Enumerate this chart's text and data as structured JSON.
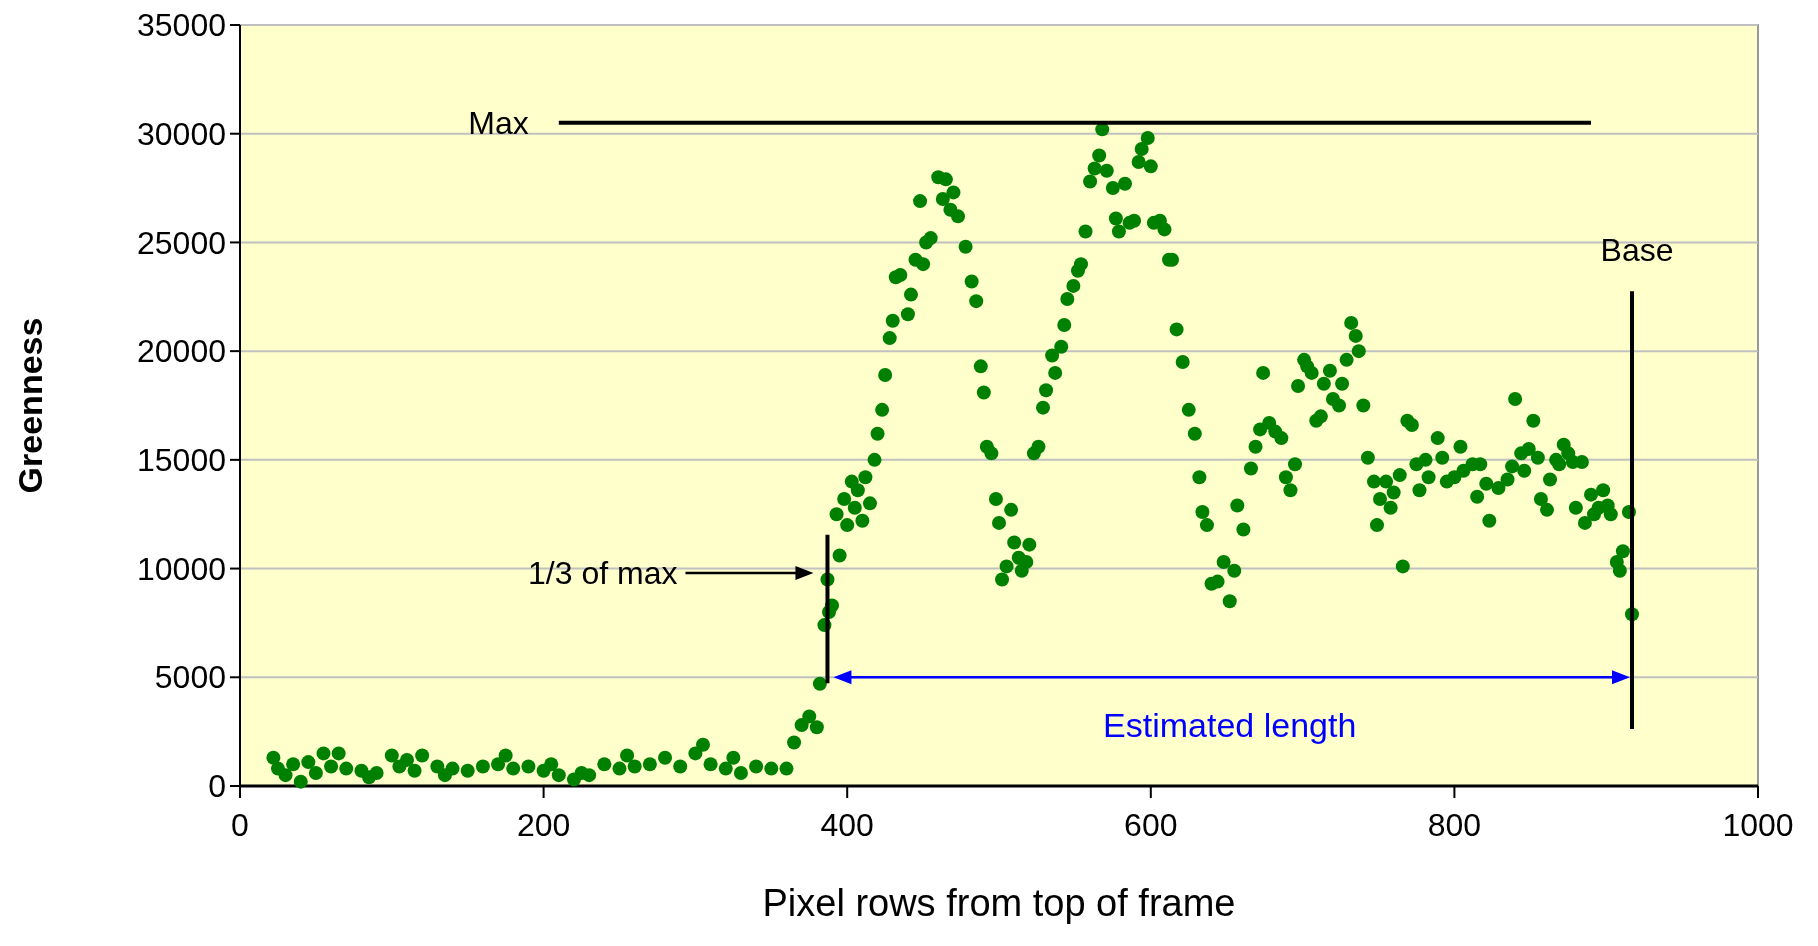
{
  "chart_data": {
    "type": "scatter",
    "xlabel": "Pixel rows from top of frame",
    "ylabel": "Greenness",
    "xlim": [
      0,
      1000
    ],
    "xticks": [
      0,
      200,
      400,
      600,
      800,
      1000
    ],
    "ylim": [
      0,
      35000
    ],
    "yticks": [
      0,
      5000,
      10000,
      15000,
      20000,
      25000,
      30000,
      35000
    ],
    "grid": "y",
    "marker": "circle",
    "series": [
      {
        "color": "#008000",
        "x": [
          22,
          25,
          30,
          35,
          40,
          45,
          50,
          55,
          60,
          65,
          70,
          80,
          85,
          90,
          100,
          105,
          110,
          115,
          120,
          130,
          135,
          140,
          150,
          160,
          170,
          175,
          180,
          190,
          200,
          205,
          210,
          220,
          225,
          230,
          240,
          250,
          255,
          260,
          270,
          280,
          290,
          300,
          305,
          310,
          320,
          325,
          330,
          340,
          350,
          360,
          365,
          370,
          375,
          380,
          382,
          385,
          387,
          388,
          390,
          393,
          395,
          398,
          400,
          403,
          405,
          407,
          410,
          412,
          415,
          418,
          420,
          423,
          425,
          428,
          430,
          432,
          435,
          440,
          442,
          445,
          448,
          450,
          452,
          455,
          460,
          463,
          465,
          468,
          470,
          473,
          478,
          482,
          485,
          488,
          490,
          492,
          495,
          498,
          500,
          502,
          505,
          508,
          510,
          513,
          515,
          518,
          520,
          523,
          526,
          529,
          531,
          535,
          537,
          541,
          543,
          545,
          549,
          552,
          554,
          557,
          560,
          563,
          566,
          568,
          571,
          575,
          577,
          579,
          583,
          586,
          589,
          592,
          594,
          598,
          600,
          602,
          606,
          609,
          612,
          614,
          617,
          621,
          625,
          629,
          632,
          634,
          637,
          640,
          644,
          648,
          652,
          655,
          657,
          661,
          666,
          669,
          672,
          674,
          678,
          682,
          686,
          689,
          692,
          695,
          697,
          701,
          703,
          706,
          709,
          712,
          714,
          718,
          720,
          724,
          726,
          729,
          732,
          735,
          737,
          740,
          743,
          747,
          749,
          751,
          755,
          758,
          760,
          764,
          766,
          769,
          772,
          775,
          777,
          781,
          783,
          789,
          792,
          795,
          800,
          804,
          806,
          812,
          815,
          817,
          821,
          823,
          829,
          835,
          838,
          840,
          844,
          846,
          849,
          852,
          855,
          857,
          861,
          863,
          867,
          869,
          872,
          875,
          878,
          880,
          884,
          886,
          890,
          892,
          895,
          898,
          901,
          903,
          907,
          909,
          911,
          915,
          917
        ],
        "values": [
          1300,
          800,
          500,
          1000,
          200,
          1100,
          600,
          1500,
          900,
          1500,
          800,
          700,
          400,
          600,
          1400,
          900,
          1200,
          700,
          1400,
          900,
          500,
          800,
          700,
          900,
          1000,
          1400,
          800,
          900,
          700,
          1000,
          500,
          300,
          600,
          500,
          1000,
          800,
          1400,
          900,
          1000,
          1300,
          900,
          1500,
          1900,
          1000,
          800,
          1300,
          600,
          900,
          800,
          800,
          2000,
          2800,
          3200,
          2700,
          4700,
          7400,
          9500,
          8000,
          8300,
          12500,
          10600,
          13200,
          12000,
          14000,
          12800,
          13600,
          12200,
          14200,
          13000,
          15000,
          16200,
          17300,
          18900,
          20600,
          21400,
          23400,
          23500,
          21700,
          22600,
          24200,
          26900,
          24000,
          25000,
          25200,
          28000,
          27000,
          27900,
          26500,
          27300,
          26200,
          24800,
          23200,
          22300,
          19300,
          18100,
          15600,
          15300,
          13200,
          12100,
          9500,
          10100,
          12700,
          11200,
          10500,
          9900,
          10300,
          11100,
          15300,
          15600,
          17400,
          18200,
          19800,
          19000,
          20200,
          21200,
          22400,
          23000,
          23700,
          24000,
          25500,
          27800,
          28400,
          29000,
          30200,
          28300,
          27500,
          26100,
          25500,
          27700,
          25900,
          26000,
          28700,
          29300,
          29800,
          28500,
          25900,
          26000,
          25600,
          24200,
          24200,
          21000,
          19500,
          17300,
          16200,
          14200,
          12600,
          12000,
          9300,
          9400,
          10300,
          8500,
          9900,
          12900,
          11800,
          14600,
          15600,
          16400,
          19000,
          16700,
          16300,
          16000,
          14200,
          13600,
          14800,
          18400,
          19600,
          19300,
          19000,
          16800,
          17000,
          18500,
          19100,
          17800,
          17500,
          18500,
          19600,
          21300,
          20700,
          20000,
          17500,
          15100,
          14000,
          12000,
          13200,
          14000,
          12800,
          13500,
          14300,
          10100,
          16800,
          16600,
          14800,
          13600,
          15000,
          14200,
          16000,
          15100,
          14000,
          14200,
          15600,
          14500,
          14800,
          13300,
          14800,
          13900,
          12200,
          13700,
          14100,
          14700,
          17800,
          15300,
          14500,
          15500,
          16800,
          15100,
          13200,
          12700,
          14100,
          15000,
          14800,
          15700,
          15300,
          14900,
          12800,
          14900,
          12100,
          13400,
          12500,
          12800,
          13600,
          12900,
          12500,
          10300,
          9900,
          10800,
          12600,
          7900
        ]
      }
    ],
    "ref_lines": [
      {
        "axis": "y",
        "value": 30500,
        "label": "Max",
        "color": "#000000"
      },
      {
        "axis": "x",
        "value": 387,
        "color": "#000000"
      },
      {
        "axis": "x",
        "value": 917,
        "label": "Base",
        "color": "#000000"
      }
    ],
    "annotations": [
      "1/3 of max",
      "Estimated length"
    ]
  }
}
